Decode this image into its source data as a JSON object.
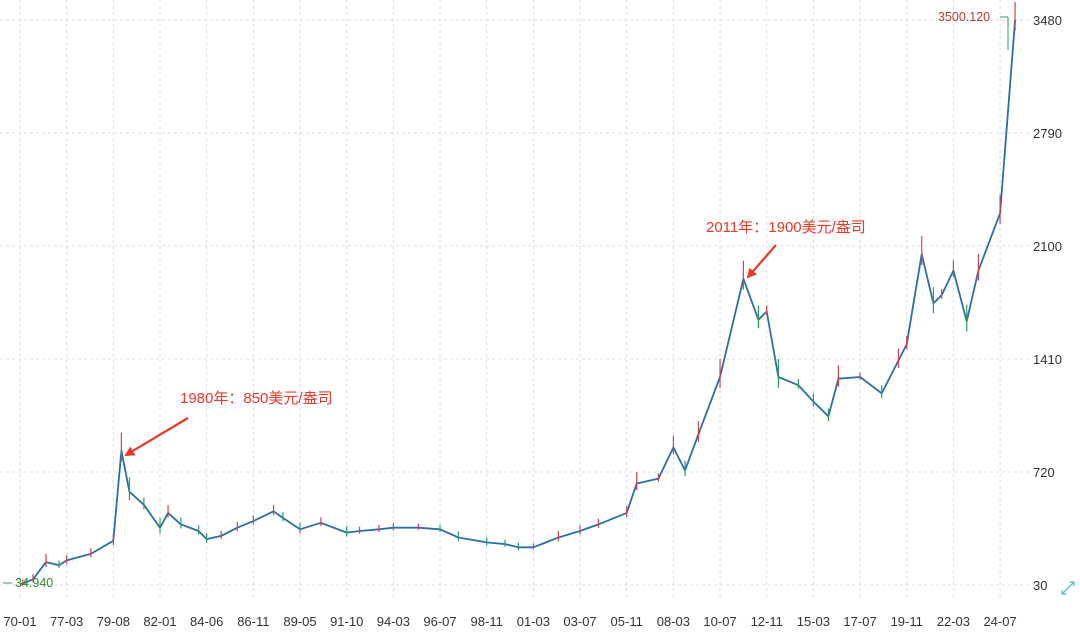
{
  "chart_data": {
    "type": "line",
    "ylim": [
      30,
      3480
    ],
    "y_ticks": [
      "3480",
      "2790",
      "2100",
      "1410",
      "720",
      "30"
    ],
    "x_ticks": [
      "70-01",
      "77-03",
      "79-08",
      "82-01",
      "84-06",
      "86-11",
      "89-05",
      "91-10",
      "94-03",
      "96-07",
      "98-11",
      "01-03",
      "03-07",
      "05-11",
      "08-03",
      "10-07",
      "12-11",
      "15-03",
      "17-07",
      "19-11",
      "22-03",
      "24-07"
    ],
    "grid": true,
    "max_label": "3500.120",
    "min_label": "34.940",
    "annotations": [
      {
        "text": "1980年：850美元/盎司",
        "target_x_tick": "79-08",
        "target_value": 850
      },
      {
        "text": "2011年：1900美元/盎司",
        "target_x_tick": "10-07",
        "target_value": 1900
      }
    ],
    "colors": {
      "line": "#2a6fa8",
      "up": "#d9404a",
      "down": "#2e9e5c",
      "annotation": "#e8392b",
      "grid": "#d7dde6"
    },
    "series": [
      {
        "x": [
          "70-01",
          "70-06",
          "72-01",
          "74-01",
          "76-01",
          "77-03",
          "78-06",
          "79-08",
          "80-01",
          "80-06",
          "81-03",
          "82-01",
          "82-06",
          "83-02",
          "84-01",
          "84-06",
          "85-03",
          "86-01",
          "86-11",
          "87-12",
          "88-06",
          "89-05",
          "90-06",
          "91-10",
          "92-06",
          "93-06",
          "94-03",
          "95-06",
          "96-07",
          "97-06",
          "98-11",
          "99-10",
          "00-06",
          "01-03",
          "02-06",
          "03-07",
          "04-06",
          "05-11",
          "06-05",
          "07-06",
          "08-03",
          "08-10",
          "09-06",
          "10-07",
          "11-09",
          "12-06",
          "12-11",
          "13-06",
          "14-06",
          "15-03",
          "15-12",
          "16-06",
          "17-07",
          "18-08",
          "19-06",
          "19-11",
          "20-08",
          "21-03",
          "21-08",
          "22-03",
          "22-11",
          "23-06",
          "24-07",
          "25-04"
        ],
        "values": [
          35,
          38,
          65,
          170,
          150,
          180,
          220,
          300,
          850,
          600,
          520,
          380,
          470,
          400,
          360,
          310,
          330,
          380,
          420,
          480,
          440,
          370,
          410,
          350,
          360,
          370,
          380,
          380,
          370,
          320,
          290,
          280,
          260,
          260,
          320,
          360,
          400,
          470,
          650,
          680,
          870,
          730,
          950,
          1300,
          1900,
          1650,
          1700,
          1300,
          1250,
          1150,
          1060,
          1290,
          1300,
          1200,
          1400,
          1500,
          2050,
          1750,
          1800,
          1950,
          1640,
          1950,
          2300,
          3480
        ]
      }
    ]
  }
}
